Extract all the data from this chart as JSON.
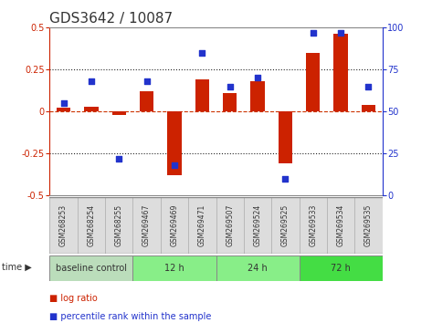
{
  "title": "GDS3642 / 10087",
  "samples": [
    "GSM268253",
    "GSM268254",
    "GSM268255",
    "GSM269467",
    "GSM269469",
    "GSM269471",
    "GSM269507",
    "GSM269524",
    "GSM269525",
    "GSM269533",
    "GSM269534",
    "GSM269535"
  ],
  "log_ratio": [
    0.02,
    0.03,
    -0.02,
    0.12,
    -0.38,
    0.19,
    0.11,
    0.18,
    -0.31,
    0.35,
    0.46,
    0.04
  ],
  "pct_rank": [
    55,
    68,
    22,
    68,
    18,
    85,
    65,
    70,
    10,
    97,
    97,
    65
  ],
  "ylim_left": [
    -0.5,
    0.5
  ],
  "ylim_right": [
    0,
    100
  ],
  "yticks_left": [
    -0.5,
    -0.25,
    0,
    0.25,
    0.5
  ],
  "yticks_right": [
    0,
    25,
    50,
    75,
    100
  ],
  "hlines_dotted": [
    0.25,
    -0.25
  ],
  "hline_zero": 0,
  "bar_color": "#cc2200",
  "dot_color": "#2233cc",
  "zero_line_color": "#cc3300",
  "dotted_line_color": "#222222",
  "background_color": "#ffffff",
  "plot_bg": "#ffffff",
  "groups": [
    {
      "label": "baseline control",
      "start": 0,
      "end": 3,
      "color": "#bbddbb"
    },
    {
      "label": "12 h",
      "start": 3,
      "end": 6,
      "color": "#88ee88"
    },
    {
      "label": "24 h",
      "start": 6,
      "end": 9,
      "color": "#88ee88"
    },
    {
      "label": "72 h",
      "start": 9,
      "end": 12,
      "color": "#44dd44"
    }
  ],
  "legend_items": [
    {
      "label": "log ratio",
      "color": "#cc2200"
    },
    {
      "label": "percentile rank within the sample",
      "color": "#2233cc"
    }
  ],
  "title_fontsize": 11,
  "tick_fontsize": 7,
  "label_fontsize": 5.5,
  "group_fontsize": 7,
  "bar_width": 0.5
}
